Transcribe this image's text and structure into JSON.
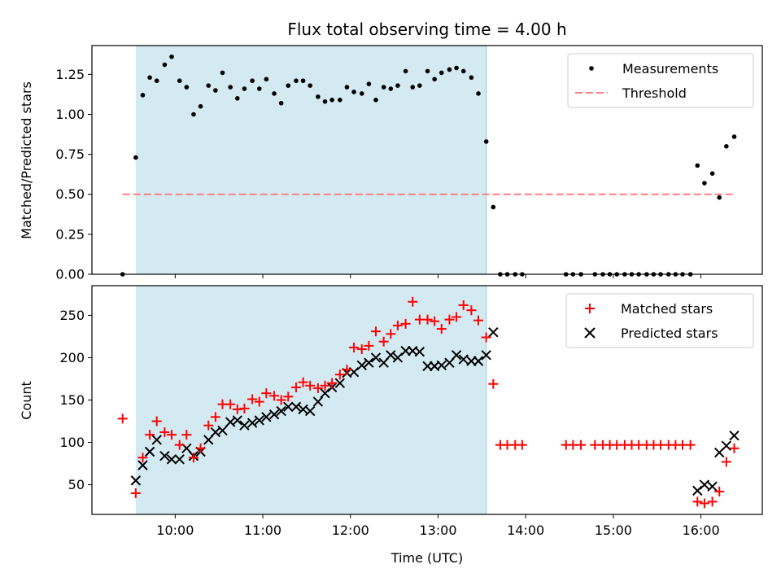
{
  "chart_data": [
    {
      "type": "scatter",
      "title": "Flux total observing time = 4.00 h",
      "xlabel": "",
      "ylabel": "Matched/Predicted stars",
      "ylim": [
        0,
        1.43
      ],
      "xlim": [
        9.05,
        16.7
      ],
      "yticks": [
        "0.00",
        "0.25",
        "0.50",
        "0.75",
        "1.00",
        "1.25"
      ],
      "yticks_values": [
        0,
        0.25,
        0.5,
        0.75,
        1.0,
        1.25
      ],
      "shaded_interval": [
        9.55,
        13.55
      ],
      "threshold": {
        "label": "Threshold",
        "value": 0.5,
        "x_range": [
          9.4,
          16.4
        ],
        "color": "#ff7f7f"
      },
      "legend": {
        "placement": "upper-right",
        "entries": [
          "Measurements",
          "Threshold"
        ]
      },
      "series": [
        {
          "name": "Measurements",
          "color": "#000000",
          "x": [
            9.4,
            9.55,
            9.63,
            9.71,
            9.79,
            9.88,
            9.96,
            10.05,
            10.13,
            10.21,
            10.29,
            10.38,
            10.46,
            10.54,
            10.63,
            10.71,
            10.79,
            10.88,
            10.96,
            11.04,
            11.13,
            11.21,
            11.29,
            11.38,
            11.46,
            11.54,
            11.63,
            11.71,
            11.79,
            11.88,
            11.96,
            12.04,
            12.13,
            12.21,
            12.29,
            12.38,
            12.46,
            12.54,
            12.63,
            12.71,
            12.79,
            12.88,
            12.96,
            13.04,
            13.13,
            13.21,
            13.29,
            13.38,
            13.46,
            13.55,
            13.63,
            13.71,
            13.79,
            13.88,
            13.96,
            14.46,
            14.54,
            14.63,
            14.79,
            14.88,
            14.96,
            15.04,
            15.13,
            15.21,
            15.29,
            15.38,
            15.46,
            15.54,
            15.63,
            15.71,
            15.79,
            15.88,
            15.96,
            16.04,
            16.13,
            16.21,
            16.29,
            16.38
          ],
          "values": [
            0.0,
            0.73,
            1.12,
            1.23,
            1.21,
            1.31,
            1.36,
            1.21,
            1.17,
            1.0,
            1.05,
            1.18,
            1.15,
            1.26,
            1.17,
            1.1,
            1.16,
            1.21,
            1.16,
            1.22,
            1.13,
            1.07,
            1.18,
            1.21,
            1.21,
            1.18,
            1.11,
            1.08,
            1.09,
            1.09,
            1.17,
            1.14,
            1.13,
            1.19,
            1.09,
            1.17,
            1.16,
            1.18,
            1.27,
            1.17,
            1.18,
            1.27,
            1.22,
            1.26,
            1.28,
            1.29,
            1.27,
            1.23,
            1.13,
            0.83,
            0.42,
            0.0,
            0.0,
            0.0,
            0.0,
            0.0,
            0.0,
            0.0,
            0.0,
            0.0,
            0.0,
            0.0,
            0.0,
            0.0,
            0.0,
            0.0,
            0.0,
            0.0,
            0.0,
            0.0,
            0.0,
            0.0,
            0.68,
            0.57,
            0.63,
            0.48,
            0.8,
            0.86
          ]
        }
      ]
    },
    {
      "type": "scatter",
      "title": "",
      "xlabel": "Time (UTC)",
      "ylabel": "Count",
      "ylim": [
        15,
        285
      ],
      "xlim": [
        9.05,
        16.7
      ],
      "yticks": [
        "50",
        "100",
        "150",
        "200",
        "250"
      ],
      "yticks_values": [
        50,
        100,
        150,
        200,
        250
      ],
      "xticks": [
        "10:00",
        "11:00",
        "12:00",
        "13:00",
        "14:00",
        "15:00",
        "16:00"
      ],
      "xticks_values": [
        10,
        11,
        12,
        13,
        14,
        15,
        16
      ],
      "shaded_interval": [
        9.55,
        13.55
      ],
      "legend": {
        "placement": "upper-right",
        "entries": [
          "Matched stars",
          "Predicted stars"
        ]
      },
      "series": [
        {
          "name": "Matched stars",
          "marker": "+",
          "color": "#ff0000",
          "x": [
            9.4,
            9.55,
            9.63,
            9.71,
            9.79,
            9.88,
            9.96,
            10.05,
            10.13,
            10.21,
            10.29,
            10.38,
            10.46,
            10.54,
            10.63,
            10.71,
            10.79,
            10.88,
            10.96,
            11.04,
            11.13,
            11.21,
            11.29,
            11.38,
            11.46,
            11.54,
            11.63,
            11.71,
            11.79,
            11.88,
            11.96,
            12.04,
            12.13,
            12.21,
            12.29,
            12.38,
            12.46,
            12.54,
            12.63,
            12.71,
            12.79,
            12.88,
            12.96,
            13.04,
            13.13,
            13.21,
            13.29,
            13.38,
            13.46,
            13.55,
            13.63,
            13.71,
            13.79,
            13.88,
            13.96,
            14.46,
            14.54,
            14.63,
            14.79,
            14.88,
            14.96,
            15.04,
            15.13,
            15.21,
            15.29,
            15.38,
            15.46,
            15.54,
            15.63,
            15.71,
            15.79,
            15.88,
            15.96,
            16.04,
            16.13,
            16.21,
            16.29,
            16.38
          ],
          "values": [
            128,
            40,
            82,
            109,
            125,
            112,
            109,
            97,
            109,
            82,
            93,
            120,
            130,
            145,
            145,
            139,
            140,
            151,
            148,
            158,
            155,
            150,
            154,
            165,
            171,
            167,
            164,
            167,
            170,
            180,
            186,
            212,
            210,
            214,
            231,
            219,
            228,
            238,
            240,
            266,
            245,
            245,
            243,
            234,
            245,
            248,
            262,
            256,
            244,
            224,
            169,
            97,
            97,
            97,
            97,
            97,
            97,
            97,
            97,
            97,
            97,
            97,
            97,
            97,
            97,
            97,
            97,
            97,
            97,
            97,
            97,
            97,
            30,
            28,
            30,
            42,
            77,
            93
          ]
        },
        {
          "name": "Predicted stars",
          "marker": "x",
          "color": "#000000",
          "x": [
            9.55,
            9.63,
            9.71,
            9.79,
            9.88,
            9.96,
            10.05,
            10.13,
            10.21,
            10.29,
            10.38,
            10.46,
            10.54,
            10.63,
            10.71,
            10.79,
            10.88,
            10.96,
            11.04,
            11.13,
            11.21,
            11.29,
            11.38,
            11.46,
            11.54,
            11.63,
            11.71,
            11.79,
            11.88,
            11.96,
            12.04,
            12.13,
            12.21,
            12.29,
            12.38,
            12.46,
            12.54,
            12.63,
            12.71,
            12.79,
            12.88,
            12.96,
            13.04,
            13.13,
            13.21,
            13.29,
            13.38,
            13.46,
            13.55,
            13.63,
            15.96,
            16.04,
            16.13,
            16.21,
            16.29,
            16.38
          ],
          "values": [
            55,
            73,
            89,
            103,
            84,
            80,
            80,
            93,
            84,
            89,
            103,
            112,
            114,
            124,
            126,
            120,
            123,
            126,
            130,
            133,
            137,
            142,
            142,
            139,
            137,
            148,
            158,
            165,
            170,
            182,
            183,
            191,
            194,
            200,
            194,
            203,
            200,
            208,
            208,
            207,
            190,
            190,
            191,
            194,
            203,
            198,
            196,
            196,
            203,
            230,
            43,
            50,
            48,
            88,
            96,
            108
          ]
        }
      ]
    }
  ]
}
